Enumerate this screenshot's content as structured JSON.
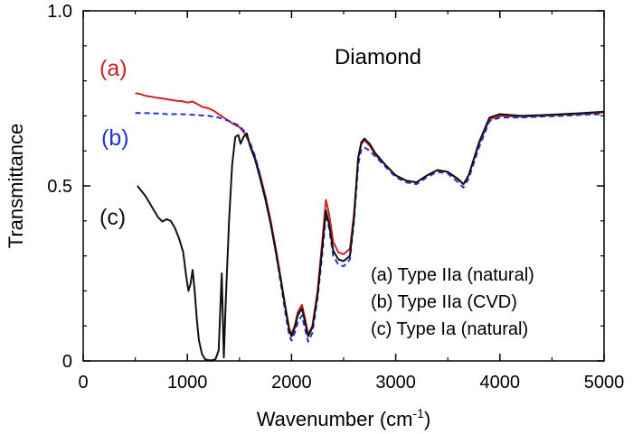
{
  "chart_data": {
    "type": "line",
    "title": "Diamond",
    "xlabel": "Wavenumber (cm",
    "xlabel_sup": "-1",
    "xlabel_suffix": ")",
    "ylabel": "Transmittance",
    "xlim": [
      0,
      5000
    ],
    "ylim": [
      0,
      1.0
    ],
    "x_ticks": [
      0,
      1000,
      2000,
      3000,
      4000,
      5000
    ],
    "x_tick_labels": [
      "0",
      "1000",
      "2000",
      "3000",
      "4000",
      "5000"
    ],
    "y_ticks": [
      0,
      0.5,
      1.0
    ],
    "y_tick_labels": [
      "0",
      "0.5",
      "1.0"
    ],
    "grid": false,
    "legend_position": "bottom-right",
    "legend": [
      "(a) Type IIa (natural)",
      "(b) Type IIa (CVD)",
      "(c) Type Ia (natural)"
    ],
    "series": [
      {
        "name": "(a) Type IIa (natural)",
        "tag": "(a)",
        "color": "#cc2222",
        "dash": "solid",
        "points": [
          [
            500,
            0.765
          ],
          [
            550,
            0.762
          ],
          [
            600,
            0.757
          ],
          [
            650,
            0.755
          ],
          [
            700,
            0.752
          ],
          [
            750,
            0.75
          ],
          [
            800,
            0.748
          ],
          [
            850,
            0.745
          ],
          [
            900,
            0.743
          ],
          [
            950,
            0.742
          ],
          [
            1000,
            0.738
          ],
          [
            1050,
            0.741
          ],
          [
            1100,
            0.733
          ],
          [
            1150,
            0.725
          ],
          [
            1200,
            0.722
          ],
          [
            1250,
            0.715
          ],
          [
            1300,
            0.705
          ],
          [
            1350,
            0.695
          ],
          [
            1400,
            0.685
          ],
          [
            1450,
            0.675
          ],
          [
            1500,
            0.668
          ],
          [
            1550,
            0.65
          ],
          [
            1600,
            0.62
          ],
          [
            1650,
            0.58
          ],
          [
            1700,
            0.53
          ],
          [
            1750,
            0.47
          ],
          [
            1800,
            0.4
          ],
          [
            1850,
            0.32
          ],
          [
            1900,
            0.23
          ],
          [
            1950,
            0.14
          ],
          [
            1980,
            0.09
          ],
          [
            2000,
            0.078
          ],
          [
            2030,
            0.1
          ],
          [
            2060,
            0.14
          ],
          [
            2100,
            0.16
          ],
          [
            2130,
            0.12
          ],
          [
            2160,
            0.075
          ],
          [
            2200,
            0.1
          ],
          [
            2250,
            0.2
          ],
          [
            2300,
            0.36
          ],
          [
            2330,
            0.46
          ],
          [
            2360,
            0.42
          ],
          [
            2400,
            0.34
          ],
          [
            2450,
            0.31
          ],
          [
            2500,
            0.305
          ],
          [
            2560,
            0.32
          ],
          [
            2600,
            0.42
          ],
          [
            2640,
            0.58
          ],
          [
            2670,
            0.62
          ],
          [
            2700,
            0.63
          ],
          [
            2750,
            0.615
          ],
          [
            2800,
            0.59
          ],
          [
            2900,
            0.56
          ],
          [
            3000,
            0.53
          ],
          [
            3100,
            0.515
          ],
          [
            3200,
            0.51
          ],
          [
            3300,
            0.53
          ],
          [
            3400,
            0.545
          ],
          [
            3500,
            0.54
          ],
          [
            3600,
            0.52
          ],
          [
            3650,
            0.505
          ],
          [
            3700,
            0.53
          ],
          [
            3800,
            0.62
          ],
          [
            3900,
            0.69
          ],
          [
            4000,
            0.7
          ],
          [
            4200,
            0.698
          ],
          [
            4400,
            0.7
          ],
          [
            4600,
            0.703
          ],
          [
            4800,
            0.705
          ],
          [
            5000,
            0.71
          ]
        ]
      },
      {
        "name": "(b) Type IIa (CVD)",
        "tag": "(b)",
        "color": "#2233cc",
        "dash": "dashed",
        "points": [
          [
            500,
            0.708
          ],
          [
            600,
            0.708
          ],
          [
            700,
            0.707
          ],
          [
            800,
            0.705
          ],
          [
            900,
            0.705
          ],
          [
            1000,
            0.704
          ],
          [
            1100,
            0.702
          ],
          [
            1200,
            0.7
          ],
          [
            1300,
            0.695
          ],
          [
            1400,
            0.685
          ],
          [
            1500,
            0.672
          ],
          [
            1550,
            0.655
          ],
          [
            1600,
            0.625
          ],
          [
            1650,
            0.585
          ],
          [
            1700,
            0.53
          ],
          [
            1750,
            0.465
          ],
          [
            1800,
            0.395
          ],
          [
            1850,
            0.31
          ],
          [
            1900,
            0.215
          ],
          [
            1950,
            0.12
          ],
          [
            1980,
            0.07
          ],
          [
            2000,
            0.058
          ],
          [
            2030,
            0.08
          ],
          [
            2060,
            0.11
          ],
          [
            2100,
            0.13
          ],
          [
            2130,
            0.09
          ],
          [
            2160,
            0.055
          ],
          [
            2200,
            0.08
          ],
          [
            2250,
            0.18
          ],
          [
            2300,
            0.32
          ],
          [
            2330,
            0.42
          ],
          [
            2360,
            0.38
          ],
          [
            2400,
            0.3
          ],
          [
            2450,
            0.275
          ],
          [
            2500,
            0.27
          ],
          [
            2560,
            0.29
          ],
          [
            2600,
            0.4
          ],
          [
            2640,
            0.56
          ],
          [
            2670,
            0.605
          ],
          [
            2700,
            0.61
          ],
          [
            2750,
            0.6
          ],
          [
            2800,
            0.585
          ],
          [
            2900,
            0.555
          ],
          [
            3000,
            0.525
          ],
          [
            3100,
            0.51
          ],
          [
            3200,
            0.505
          ],
          [
            3300,
            0.525
          ],
          [
            3400,
            0.54
          ],
          [
            3500,
            0.535
          ],
          [
            3600,
            0.51
          ],
          [
            3650,
            0.495
          ],
          [
            3700,
            0.52
          ],
          [
            3800,
            0.61
          ],
          [
            3900,
            0.685
          ],
          [
            4000,
            0.695
          ],
          [
            4200,
            0.695
          ],
          [
            4400,
            0.698
          ],
          [
            4600,
            0.7
          ],
          [
            4800,
            0.703
          ],
          [
            5000,
            0.705
          ]
        ]
      },
      {
        "name": "(c) Type Ia (natural)",
        "tag": "(c)",
        "color": "#111111",
        "dash": "solid",
        "points": [
          [
            520,
            0.5
          ],
          [
            560,
            0.485
          ],
          [
            600,
            0.47
          ],
          [
            640,
            0.45
          ],
          [
            680,
            0.43
          ],
          [
            720,
            0.41
          ],
          [
            760,
            0.398
          ],
          [
            800,
            0.405
          ],
          [
            840,
            0.4
          ],
          [
            880,
            0.38
          ],
          [
            920,
            0.35
          ],
          [
            960,
            0.31
          ],
          [
            990,
            0.24
          ],
          [
            1010,
            0.2
          ],
          [
            1030,
            0.22
          ],
          [
            1050,
            0.26
          ],
          [
            1070,
            0.2
          ],
          [
            1090,
            0.12
          ],
          [
            1110,
            0.06
          ],
          [
            1140,
            0.02
          ],
          [
            1170,
            0.005
          ],
          [
            1200,
            0.002
          ],
          [
            1240,
            0.002
          ],
          [
            1270,
            0.005
          ],
          [
            1300,
            0.03
          ],
          [
            1330,
            0.25
          ],
          [
            1350,
            0.01
          ],
          [
            1370,
            0.18
          ],
          [
            1400,
            0.4
          ],
          [
            1430,
            0.56
          ],
          [
            1460,
            0.64
          ],
          [
            1490,
            0.645
          ],
          [
            1510,
            0.62
          ],
          [
            1540,
            0.64
          ],
          [
            1570,
            0.65
          ],
          [
            1600,
            0.615
          ],
          [
            1650,
            0.575
          ],
          [
            1700,
            0.52
          ],
          [
            1750,
            0.46
          ],
          [
            1800,
            0.39
          ],
          [
            1850,
            0.31
          ],
          [
            1900,
            0.225
          ],
          [
            1950,
            0.135
          ],
          [
            1980,
            0.085
          ],
          [
            2000,
            0.07
          ],
          [
            2030,
            0.095
          ],
          [
            2060,
            0.13
          ],
          [
            2100,
            0.15
          ],
          [
            2130,
            0.11
          ],
          [
            2160,
            0.07
          ],
          [
            2200,
            0.095
          ],
          [
            2250,
            0.19
          ],
          [
            2300,
            0.34
          ],
          [
            2330,
            0.43
          ],
          [
            2360,
            0.39
          ],
          [
            2400,
            0.315
          ],
          [
            2450,
            0.29
          ],
          [
            2500,
            0.285
          ],
          [
            2560,
            0.3
          ],
          [
            2600,
            0.41
          ],
          [
            2640,
            0.58
          ],
          [
            2670,
            0.625
          ],
          [
            2700,
            0.635
          ],
          [
            2750,
            0.62
          ],
          [
            2800,
            0.595
          ],
          [
            2900,
            0.56
          ],
          [
            3000,
            0.53
          ],
          [
            3100,
            0.515
          ],
          [
            3200,
            0.51
          ],
          [
            3300,
            0.53
          ],
          [
            3400,
            0.545
          ],
          [
            3500,
            0.54
          ],
          [
            3600,
            0.518
          ],
          [
            3650,
            0.505
          ],
          [
            3700,
            0.53
          ],
          [
            3800,
            0.625
          ],
          [
            3900,
            0.695
          ],
          [
            4000,
            0.705
          ],
          [
            4200,
            0.7
          ],
          [
            4400,
            0.702
          ],
          [
            4600,
            0.705
          ],
          [
            4800,
            0.708
          ],
          [
            5000,
            0.712
          ]
        ]
      }
    ]
  }
}
